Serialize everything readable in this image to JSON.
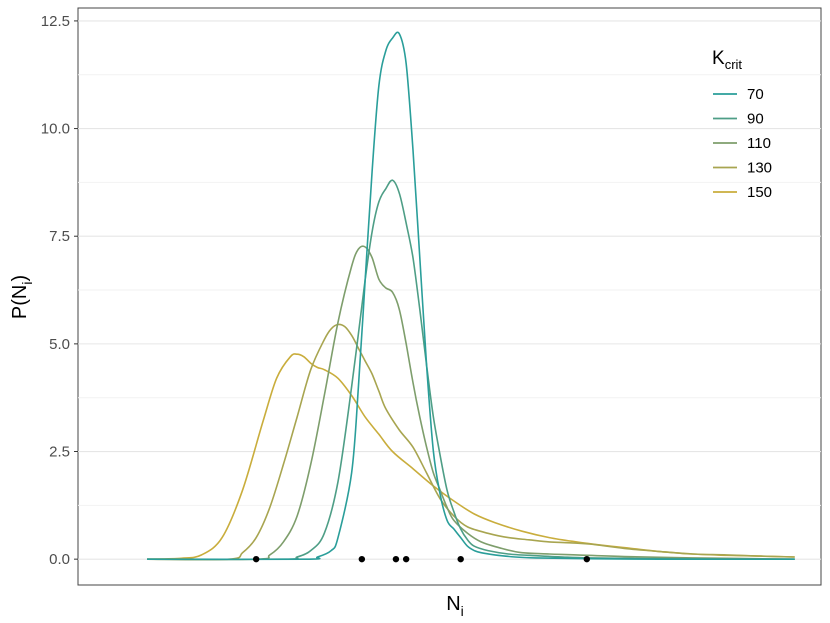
{
  "chart_data": {
    "type": "line",
    "title": "",
    "xlabel": "N",
    "xlabel_sub": "i",
    "ylabel_main": "P(N",
    "ylabel_sub": "i",
    "ylabel_close": ")",
    "ylim": [
      -0.6,
      12.8
    ],
    "yticks": [
      0.0,
      2.5,
      5.0,
      7.5,
      10.0,
      12.5
    ],
    "ytick_labels": [
      "0.0",
      "2.5",
      "5.0",
      "7.5",
      "10.0",
      "12.5"
    ],
    "xlim": [
      0,
      100
    ],
    "grid": true,
    "legend": {
      "title_main": "K",
      "title_sub": "crit",
      "position": "top-right"
    },
    "series": [
      {
        "name": "70",
        "color": "#2a9e9a",
        "x": [
          5,
          28,
          30,
          32,
          33,
          35,
          36,
          37,
          38,
          39,
          40,
          41,
          42,
          43,
          44,
          45,
          46,
          47,
          48,
          49,
          50,
          51,
          52,
          53,
          54,
          56,
          59,
          62,
          66,
          70,
          80,
          90,
          100
        ],
        "y": [
          0,
          0,
          0.05,
          0.2,
          0.5,
          2.0,
          4.0,
          6.5,
          9.0,
          11.0,
          11.8,
          12.1,
          12.2,
          11.5,
          9.5,
          7.0,
          4.5,
          2.5,
          1.5,
          0.9,
          0.7,
          0.5,
          0.3,
          0.2,
          0.15,
          0.1,
          0.05,
          0.03,
          0.02,
          0.01,
          0,
          0,
          0
        ]
      },
      {
        "name": "90",
        "color": "#4e9e86",
        "x": [
          5,
          25,
          27,
          29,
          31,
          33,
          35,
          37,
          38,
          39,
          40,
          41,
          42,
          43,
          44,
          45,
          46,
          47,
          48,
          49,
          50,
          51,
          52,
          53,
          55,
          58,
          62,
          66,
          70,
          80,
          90,
          100
        ],
        "y": [
          0,
          0,
          0.05,
          0.2,
          0.6,
          1.8,
          4.0,
          6.5,
          7.6,
          8.3,
          8.6,
          8.8,
          8.5,
          7.8,
          7.0,
          5.8,
          4.5,
          3.3,
          2.4,
          1.6,
          1.1,
          0.7,
          0.45,
          0.3,
          0.2,
          0.12,
          0.08,
          0.05,
          0.03,
          0.01,
          0,
          0
        ]
      },
      {
        "name": "110",
        "color": "#7e9e6c",
        "x": [
          5,
          21,
          23,
          25,
          27,
          29,
          31,
          33,
          35,
          36,
          37,
          38,
          39,
          40,
          41,
          42,
          43,
          44,
          45,
          46,
          47,
          48,
          49,
          50,
          52,
          54,
          57,
          60,
          64,
          68,
          75,
          85,
          100
        ],
        "y": [
          0,
          0,
          0.1,
          0.4,
          1.0,
          2.2,
          3.8,
          5.5,
          6.8,
          7.2,
          7.25,
          7.0,
          6.5,
          6.3,
          6.2,
          5.8,
          5.0,
          4.1,
          3.3,
          2.6,
          2.0,
          1.6,
          1.2,
          0.9,
          0.6,
          0.4,
          0.25,
          0.15,
          0.12,
          0.1,
          0.06,
          0.03,
          0
        ]
      },
      {
        "name": "130",
        "color": "#a8a550",
        "x": [
          5,
          17,
          19,
          21,
          23,
          25,
          27,
          29,
          31,
          32,
          33,
          34,
          35,
          36,
          37,
          38,
          39,
          40,
          42,
          44,
          46,
          48,
          50,
          52,
          55,
          58,
          61,
          64,
          67,
          70,
          75,
          80,
          85,
          90,
          95,
          100
        ],
        "y": [
          0,
          0,
          0.15,
          0.5,
          1.2,
          2.2,
          3.3,
          4.4,
          5.1,
          5.35,
          5.45,
          5.4,
          5.2,
          4.9,
          4.6,
          4.3,
          3.9,
          3.5,
          3.0,
          2.6,
          2.0,
          1.4,
          1.0,
          0.75,
          0.6,
          0.5,
          0.45,
          0.4,
          0.38,
          0.35,
          0.25,
          0.18,
          0.12,
          0.1,
          0.07,
          0.05
        ]
      },
      {
        "name": "150",
        "color": "#c9ad3c",
        "x": [
          5,
          10,
          13,
          16,
          19,
          22,
          24,
          26,
          27,
          28,
          29,
          30,
          31,
          33,
          35,
          37,
          39,
          41,
          44,
          47,
          50,
          53,
          56,
          60,
          64,
          68,
          72,
          76,
          80,
          85,
          90,
          95,
          100
        ],
        "y": [
          0,
          0.02,
          0.1,
          0.5,
          1.6,
          3.2,
          4.2,
          4.7,
          4.76,
          4.7,
          4.55,
          4.45,
          4.4,
          4.2,
          3.8,
          3.3,
          2.9,
          2.5,
          2.1,
          1.7,
          1.35,
          1.05,
          0.85,
          0.65,
          0.5,
          0.4,
          0.32,
          0.25,
          0.18,
          0.12,
          0.09,
          0.07,
          0.05
        ]
      }
    ],
    "rug_points": {
      "color": "#000000",
      "x": [
        21,
        36.5,
        41.5,
        43,
        51,
        69.5
      ],
      "y": [
        0,
        0,
        0,
        0,
        0,
        0
      ]
    }
  }
}
